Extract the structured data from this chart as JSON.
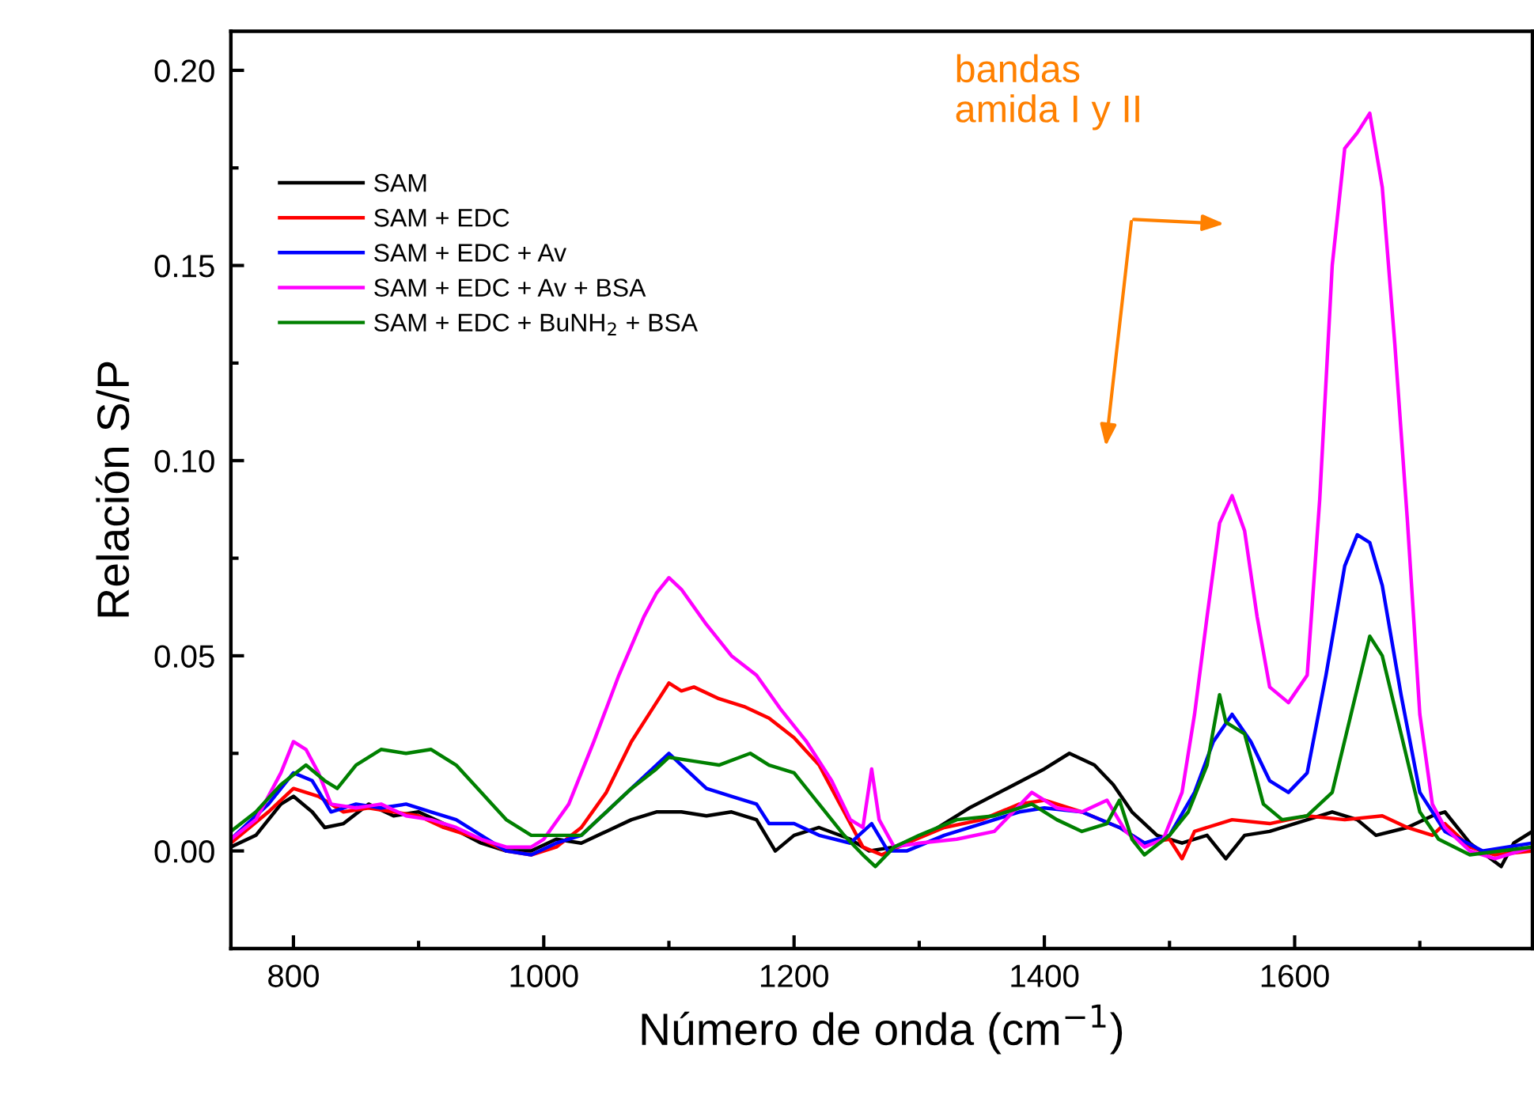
{
  "chart_data": {
    "type": "line",
    "xlabel": "Número de onda (cm$^{−1}$)",
    "ylabel": "Relación S/P",
    "xlim": [
      750,
      1790
    ],
    "ylim": [
      -0.025,
      0.21
    ],
    "xticks": [
      800,
      {
        "value": 900,
        "label": null
      },
      1000,
      {
        "value": 1100,
        "label": null
      },
      1200,
      {
        "value": 1300,
        "label": null
      },
      1400,
      {
        "value": 1500,
        "label": null
      },
      1600,
      {
        "value": 1700,
        "label": null
      }
    ],
    "yticks": [
      {
        "value": 0,
        "label": "0.00"
      },
      {
        "value": 0.025,
        "label": null
      },
      {
        "value": 0.05,
        "label": "0.05"
      },
      {
        "value": 0.075,
        "label": null
      },
      {
        "value": 0.1,
        "label": "0.10"
      },
      {
        "value": 0.125,
        "label": null
      },
      {
        "value": 0.15,
        "label": "0.15"
      },
      {
        "value": 0.175,
        "label": null
      },
      {
        "value": 0.2,
        "label": "0.20"
      }
    ],
    "grid": false,
    "legend": "top left",
    "line_style": "solid",
    "marker": "none",
    "annotations": [
      "bandas\namida I y II"
    ],
    "series": [
      {
        "name": "SAM",
        "color": "#000000",
        "x": [
          750,
          770,
          790,
          800,
          815,
          825,
          840,
          860,
          880,
          900,
          920,
          950,
          970,
          990,
          1010,
          1030,
          1050,
          1070,
          1090,
          1110,
          1130,
          1150,
          1170,
          1185,
          1200,
          1220,
          1245,
          1260,
          1280,
          1310,
          1340,
          1370,
          1400,
          1420,
          1440,
          1455,
          1470,
          1490,
          1510,
          1530,
          1545,
          1560,
          1580,
          1600,
          1630,
          1650,
          1665,
          1690,
          1710,
          1720,
          1740,
          1765,
          1775,
          1790
        ],
        "values": [
          0.001,
          0.004,
          0.012,
          0.014,
          0.01,
          0.006,
          0.007,
          0.012,
          0.009,
          0.01,
          0.007,
          0.002,
          0.0,
          0.0,
          0.003,
          0.002,
          0.005,
          0.008,
          0.01,
          0.01,
          0.009,
          0.01,
          0.008,
          0.0,
          0.004,
          0.006,
          0.003,
          0.0,
          0.001,
          0.005,
          0.011,
          0.016,
          0.021,
          0.025,
          0.022,
          0.017,
          0.01,
          0.004,
          0.002,
          0.004,
          -0.002,
          0.004,
          0.005,
          0.007,
          0.01,
          0.008,
          0.004,
          0.006,
          0.009,
          0.01,
          0.002,
          -0.004,
          0.002,
          0.005
        ]
      },
      {
        "name": "SAM + EDC",
        "color": "#ff0000",
        "x": [
          750,
          780,
          800,
          820,
          840,
          860,
          880,
          900,
          920,
          950,
          970,
          990,
          1010,
          1030,
          1050,
          1070,
          1090,
          1100,
          1110,
          1120,
          1140,
          1160,
          1180,
          1200,
          1220,
          1240,
          1255,
          1270,
          1290,
          1320,
          1350,
          1380,
          1400,
          1430,
          1460,
          1480,
          1500,
          1510,
          1520,
          1550,
          1580,
          1610,
          1640,
          1670,
          1690,
          1710,
          1720,
          1740,
          1760,
          1790
        ],
        "values": [
          0.002,
          0.01,
          0.016,
          0.014,
          0.01,
          0.011,
          0.01,
          0.009,
          0.006,
          0.003,
          0.0,
          -0.001,
          0.001,
          0.006,
          0.015,
          0.028,
          0.038,
          0.043,
          0.041,
          0.042,
          0.039,
          0.037,
          0.034,
          0.029,
          0.022,
          0.01,
          0.001,
          -0.001,
          0.002,
          0.006,
          0.008,
          0.012,
          0.013,
          0.01,
          0.006,
          0.002,
          0.003,
          -0.002,
          0.005,
          0.008,
          0.007,
          0.009,
          0.008,
          0.009,
          0.006,
          0.004,
          0.007,
          0.001,
          -0.001,
          0.0
        ]
      },
      {
        "name": "SAM + EDC + Av",
        "color": "#0000ff",
        "x": [
          750,
          780,
          800,
          815,
          830,
          850,
          870,
          890,
          910,
          930,
          950,
          970,
          990,
          1010,
          1030,
          1050,
          1070,
          1090,
          1100,
          1110,
          1130,
          1150,
          1170,
          1180,
          1200,
          1220,
          1245,
          1262,
          1275,
          1290,
          1320,
          1350,
          1380,
          1400,
          1430,
          1460,
          1480,
          1500,
          1520,
          1535,
          1550,
          1565,
          1580,
          1595,
          1610,
          1625,
          1640,
          1650,
          1660,
          1670,
          1685,
          1700,
          1720,
          1750,
          1790
        ],
        "values": [
          0.003,
          0.012,
          0.02,
          0.018,
          0.01,
          0.012,
          0.011,
          0.012,
          0.01,
          0.008,
          0.004,
          0.0,
          -0.001,
          0.002,
          0.004,
          0.01,
          0.016,
          0.022,
          0.025,
          0.022,
          0.016,
          0.014,
          0.012,
          0.007,
          0.007,
          0.004,
          0.002,
          0.007,
          0.0,
          0.0,
          0.004,
          0.007,
          0.01,
          0.011,
          0.01,
          0.006,
          0.002,
          0.004,
          0.015,
          0.028,
          0.035,
          0.028,
          0.018,
          0.015,
          0.02,
          0.045,
          0.073,
          0.081,
          0.079,
          0.068,
          0.04,
          0.015,
          0.005,
          0.0,
          0.002
        ]
      },
      {
        "name": "SAM + EDC + Av + BSA",
        "color": "#ff00ff",
        "x": [
          750,
          770,
          790,
          800,
          810,
          820,
          830,
          850,
          870,
          890,
          910,
          930,
          950,
          970,
          990,
          1000,
          1020,
          1040,
          1060,
          1080,
          1090,
          1100,
          1110,
          1130,
          1150,
          1170,
          1190,
          1210,
          1230,
          1245,
          1255,
          1262,
          1268,
          1280,
          1300,
          1330,
          1360,
          1390,
          1410,
          1430,
          1450,
          1465,
          1480,
          1495,
          1510,
          1520,
          1530,
          1540,
          1550,
          1560,
          1570,
          1580,
          1595,
          1610,
          1620,
          1630,
          1640,
          1650,
          1660,
          1670,
          1680,
          1690,
          1700,
          1710,
          1720,
          1740,
          1760,
          1790
        ],
        "values": [
          0.003,
          0.008,
          0.02,
          0.028,
          0.026,
          0.02,
          0.012,
          0.011,
          0.012,
          0.009,
          0.008,
          0.006,
          0.003,
          0.001,
          0.001,
          0.003,
          0.012,
          0.028,
          0.045,
          0.06,
          0.066,
          0.07,
          0.067,
          0.058,
          0.05,
          0.045,
          0.036,
          0.028,
          0.018,
          0.008,
          0.006,
          0.021,
          0.008,
          0.001,
          0.002,
          0.003,
          0.005,
          0.015,
          0.011,
          0.01,
          0.013,
          0.005,
          0.001,
          0.003,
          0.015,
          0.035,
          0.06,
          0.084,
          0.091,
          0.082,
          0.06,
          0.042,
          0.038,
          0.045,
          0.09,
          0.15,
          0.18,
          0.184,
          0.189,
          0.17,
          0.13,
          0.085,
          0.035,
          0.012,
          0.006,
          0.0,
          -0.002,
          0.001
        ]
      },
      {
        "name": "SAM + EDC + BuNH$_{2}$ + BSA",
        "color": "#008000",
        "x": [
          750,
          770,
          790,
          810,
          825,
          835,
          850,
          870,
          890,
          910,
          930,
          950,
          970,
          990,
          1010,
          1030,
          1050,
          1070,
          1090,
          1100,
          1120,
          1140,
          1165,
          1180,
          1200,
          1220,
          1240,
          1255,
          1265,
          1280,
          1300,
          1330,
          1360,
          1390,
          1410,
          1430,
          1450,
          1460,
          1470,
          1480,
          1500,
          1515,
          1530,
          1540,
          1545,
          1560,
          1575,
          1590,
          1610,
          1630,
          1645,
          1660,
          1670,
          1685,
          1700,
          1715,
          1740,
          1790
        ],
        "values": [
          0.005,
          0.01,
          0.017,
          0.022,
          0.018,
          0.016,
          0.022,
          0.026,
          0.025,
          0.026,
          0.022,
          0.015,
          0.008,
          0.004,
          0.004,
          0.004,
          0.01,
          0.016,
          0.021,
          0.024,
          0.023,
          0.022,
          0.025,
          0.022,
          0.02,
          0.012,
          0.004,
          -0.001,
          -0.004,
          0.001,
          0.004,
          0.008,
          0.009,
          0.012,
          0.008,
          0.005,
          0.007,
          0.013,
          0.003,
          -0.001,
          0.004,
          0.01,
          0.022,
          0.04,
          0.033,
          0.03,
          0.012,
          0.008,
          0.009,
          0.015,
          0.035,
          0.055,
          0.05,
          0.03,
          0.01,
          0.003,
          -0.001,
          0.001
        ]
      }
    ]
  }
}
